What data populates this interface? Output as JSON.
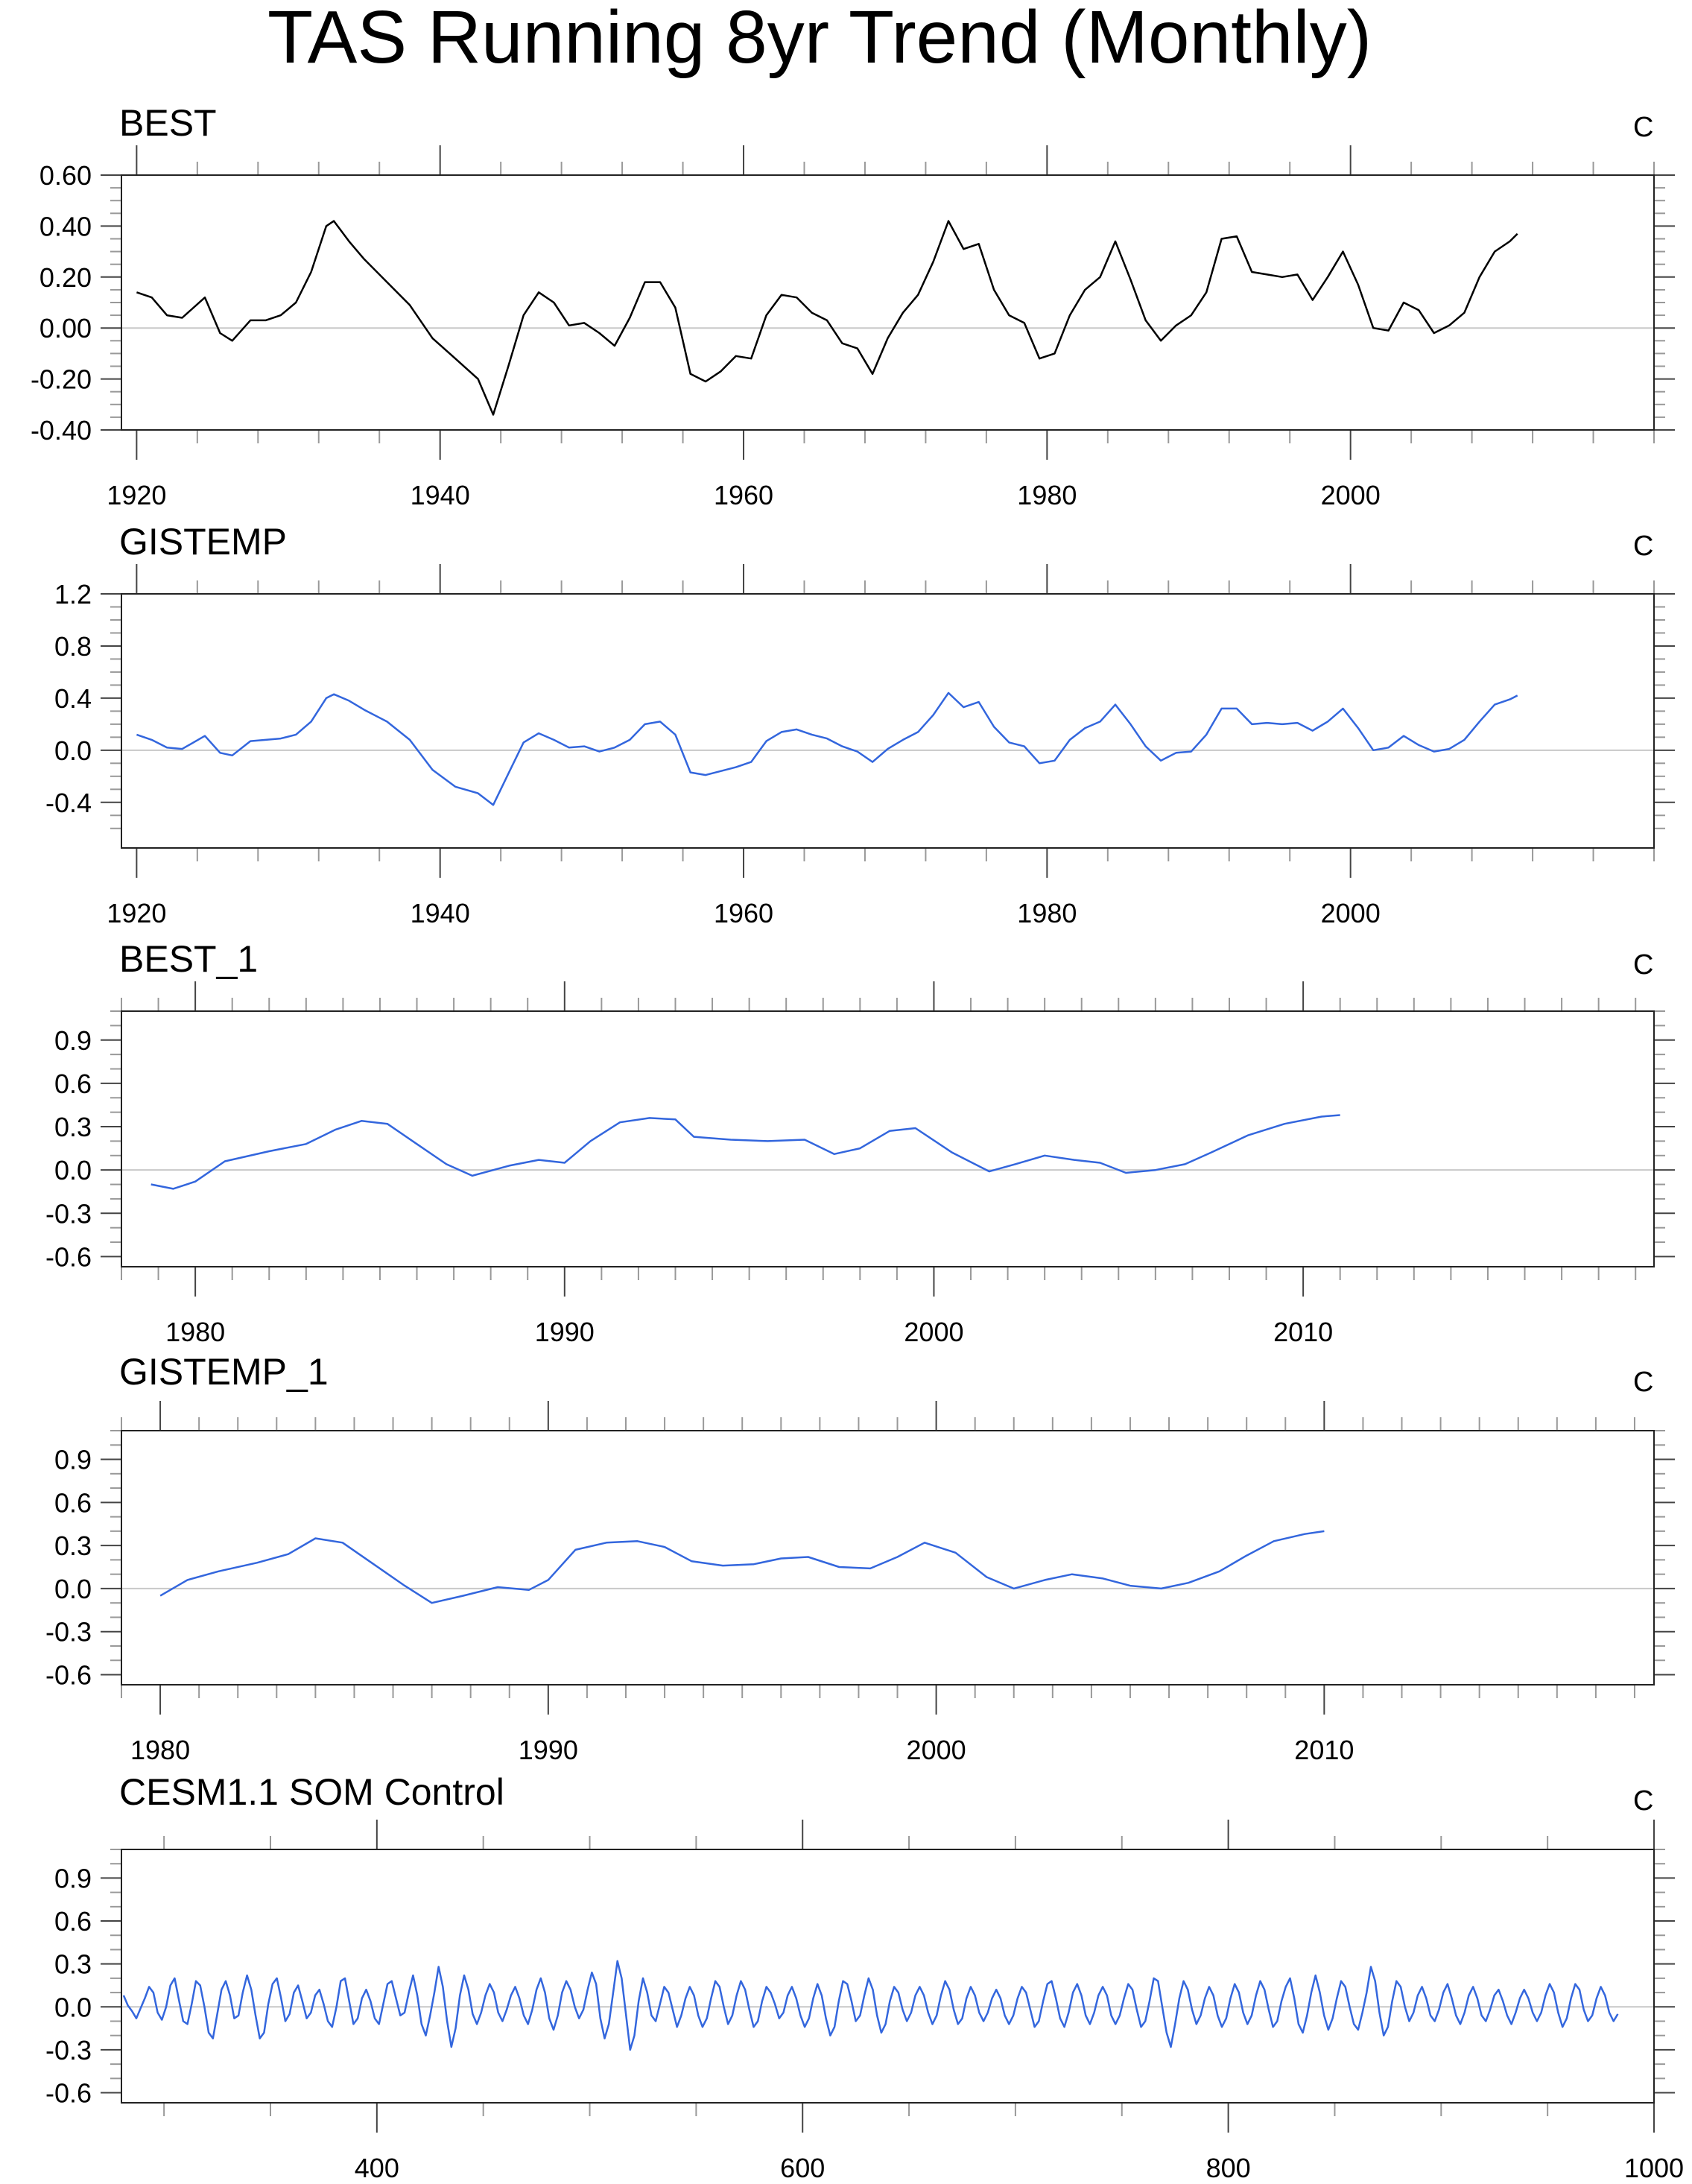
{
  "page": {
    "title": "TAS Running 8yr Trend (Monthly)"
  },
  "chart_data": [
    {
      "type": "line",
      "title": "BEST",
      "units": "C",
      "line_color": "#000000",
      "xlim": [
        1919,
        2020
      ],
      "ylim": [
        -0.4,
        0.6
      ],
      "x_major_ticks": [
        1920,
        1940,
        1960,
        1980,
        2000
      ],
      "x_tick_labels": [
        "1920",
        "1940",
        "1960",
        "1980",
        "2000"
      ],
      "x_minor_step": 4,
      "y_major_ticks": [
        -0.4,
        -0.2,
        0.0,
        0.2,
        0.4,
        0.6
      ],
      "y_tick_labels": [
        "-0.40",
        "-0.20",
        "0.00",
        "0.20",
        "0.40",
        "0.60"
      ],
      "y_minor_step": 0.05,
      "zero_line": true,
      "x": [
        1920.0,
        1921.0,
        1922.0,
        1923.0,
        1924.5,
        1925.5,
        1926.3,
        1927.5,
        1928.5,
        1929.5,
        1930.5,
        1931.5,
        1932.5,
        1933.0,
        1934.0,
        1935.0,
        1936.5,
        1938.0,
        1939.5,
        1941.0,
        1942.5,
        1943.5,
        1944.5,
        1945.5,
        1946.5,
        1947.5,
        1948.5,
        1949.5,
        1950.5,
        1951.5,
        1952.5,
        1953.5,
        1954.5,
        1955.5,
        1956.5,
        1957.5,
        1958.5,
        1959.5,
        1960.5,
        1961.5,
        1962.5,
        1963.5,
        1964.5,
        1965.5,
        1966.5,
        1967.5,
        1968.5,
        1969.5,
        1970.5,
        1971.5,
        1972.5,
        1973.5,
        1974.5,
        1975.5,
        1976.5,
        1977.5,
        1978.5,
        1979.5,
        1980.5,
        1981.5,
        1982.5,
        1983.5,
        1984.5,
        1985.5,
        1986.5,
        1987.5,
        1988.5,
        1989.5,
        1990.5,
        1991.5,
        1992.5,
        1993.5,
        1994.5,
        1995.5,
        1996.5,
        1997.5,
        1998.5,
        1999.5,
        2000.5,
        2001.5,
        2002.5,
        2003.5,
        2004.5,
        2005.5,
        2006.5,
        2007.5,
        2008.5,
        2009.5,
        2010.5,
        2011.0
      ],
      "values": [
        0.14,
        0.12,
        0.05,
        0.04,
        0.12,
        -0.02,
        -0.05,
        0.03,
        0.03,
        0.05,
        0.1,
        0.22,
        0.4,
        0.42,
        0.34,
        0.27,
        0.18,
        0.09,
        -0.04,
        -0.12,
        -0.2,
        -0.34,
        -0.15,
        0.05,
        0.14,
        0.1,
        0.01,
        0.02,
        -0.02,
        -0.07,
        0.04,
        0.18,
        0.18,
        0.08,
        -0.18,
        -0.21,
        -0.17,
        -0.11,
        -0.12,
        0.05,
        0.13,
        0.12,
        0.06,
        0.03,
        -0.06,
        -0.08,
        -0.18,
        -0.04,
        0.06,
        0.13,
        0.26,
        0.42,
        0.31,
        0.33,
        0.15,
        0.05,
        0.02,
        -0.12,
        -0.1,
        0.05,
        0.15,
        0.2,
        0.34,
        0.19,
        0.03,
        -0.05,
        0.01,
        0.05,
        0.14,
        0.35,
        0.36,
        0.22,
        0.21,
        0.2,
        0.21,
        0.11,
        0.2,
        0.3,
        0.17,
        0.0,
        -0.01,
        0.1,
        0.07,
        -0.02,
        0.01,
        0.06,
        0.2,
        0.3,
        0.34,
        0.37
      ]
    },
    {
      "type": "line",
      "title": "GISTEMP",
      "units": "C",
      "line_color": "#3366dd",
      "xlim": [
        1919,
        2020
      ],
      "ylim": [
        -0.75,
        1.2
      ],
      "x_major_ticks": [
        1920,
        1940,
        1960,
        1980,
        2000
      ],
      "x_tick_labels": [
        "1920",
        "1940",
        "1960",
        "1980",
        "2000"
      ],
      "x_minor_step": 4,
      "y_major_ticks": [
        -0.4,
        0.0,
        0.4,
        0.8,
        1.2
      ],
      "y_tick_labels": [
        "-0.4",
        "0.0",
        "0.4",
        "0.8",
        "1.2"
      ],
      "y_minor_step": 0.1,
      "zero_line": true,
      "x": [
        1920.0,
        1921.0,
        1922.0,
        1923.0,
        1924.5,
        1925.5,
        1926.3,
        1927.5,
        1928.5,
        1929.5,
        1930.5,
        1931.5,
        1932.5,
        1933.0,
        1934.0,
        1935.0,
        1936.5,
        1938.0,
        1939.5,
        1941.0,
        1942.5,
        1943.5,
        1944.5,
        1945.5,
        1946.5,
        1947.5,
        1948.5,
        1949.5,
        1950.5,
        1951.5,
        1952.5,
        1953.5,
        1954.5,
        1955.5,
        1956.5,
        1957.5,
        1958.5,
        1959.5,
        1960.5,
        1961.5,
        1962.5,
        1963.5,
        1964.5,
        1965.5,
        1966.5,
        1967.5,
        1968.5,
        1969.5,
        1970.5,
        1971.5,
        1972.5,
        1973.5,
        1974.5,
        1975.5,
        1976.5,
        1977.5,
        1978.5,
        1979.5,
        1980.5,
        1981.5,
        1982.5,
        1983.5,
        1984.5,
        1985.5,
        1986.5,
        1987.5,
        1988.5,
        1989.5,
        1990.5,
        1991.5,
        1992.5,
        1993.5,
        1994.5,
        1995.5,
        1996.5,
        1997.5,
        1998.5,
        1999.5,
        2000.5,
        2001.5,
        2002.5,
        2003.5,
        2004.5,
        2005.5,
        2006.5,
        2007.5,
        2008.5,
        2009.5,
        2010.5,
        2011.0
      ],
      "values": [
        0.12,
        0.08,
        0.02,
        0.01,
        0.11,
        -0.02,
        -0.04,
        0.07,
        0.08,
        0.09,
        0.12,
        0.22,
        0.4,
        0.43,
        0.38,
        0.31,
        0.22,
        0.08,
        -0.15,
        -0.28,
        -0.33,
        -0.42,
        -0.18,
        0.06,
        0.13,
        0.08,
        0.02,
        0.03,
        -0.01,
        0.02,
        0.08,
        0.2,
        0.22,
        0.12,
        -0.17,
        -0.19,
        -0.16,
        -0.13,
        -0.09,
        0.07,
        0.14,
        0.16,
        0.12,
        0.09,
        0.03,
        -0.01,
        -0.09,
        0.01,
        0.08,
        0.14,
        0.27,
        0.44,
        0.33,
        0.37,
        0.18,
        0.06,
        0.03,
        -0.1,
        -0.08,
        0.08,
        0.17,
        0.22,
        0.35,
        0.2,
        0.03,
        -0.08,
        -0.02,
        -0.01,
        0.12,
        0.32,
        0.32,
        0.2,
        0.21,
        0.2,
        0.21,
        0.15,
        0.22,
        0.32,
        0.17,
        0.0,
        0.02,
        0.11,
        0.04,
        -0.01,
        0.01,
        0.08,
        0.22,
        0.35,
        0.39,
        0.42
      ]
    },
    {
      "type": "line",
      "title": "BEST_1",
      "units": "C",
      "line_color": "#3366dd",
      "xlim": [
        1978,
        2019.5
      ],
      "ylim": [
        -0.67,
        1.1
      ],
      "x_major_ticks": [
        1980,
        1990,
        2000,
        2010
      ],
      "x_tick_labels": [
        "1980",
        "1990",
        "2000",
        "2010"
      ],
      "x_minor_step": 1,
      "y_major_ticks": [
        -0.6,
        -0.3,
        0.0,
        0.3,
        0.6,
        0.9
      ],
      "y_tick_labels": [
        "-0.6",
        "-0.3",
        "0.0",
        "0.3",
        "0.6",
        "0.9"
      ],
      "y_minor_step": 0.1,
      "zero_line": true,
      "x": [
        1978.8,
        1979.4,
        1980.0,
        1980.8,
        1982.0,
        1983.0,
        1983.8,
        1984.5,
        1985.2,
        1986.0,
        1986.8,
        1987.5,
        1988.5,
        1989.3,
        1990.0,
        1990.7,
        1991.5,
        1992.3,
        1993.0,
        1993.5,
        1994.5,
        1995.5,
        1996.5,
        1997.3,
        1998.0,
        1998.8,
        1999.5,
        2000.5,
        2001.5,
        2002.2,
        2003.0,
        2003.8,
        2004.5,
        2005.2,
        2006.0,
        2006.8,
        2007.5,
        2008.5,
        2009.5,
        2010.5,
        2011.0
      ],
      "values": [
        -0.1,
        -0.13,
        -0.08,
        0.06,
        0.13,
        0.18,
        0.28,
        0.34,
        0.32,
        0.18,
        0.04,
        -0.04,
        0.03,
        0.07,
        0.05,
        0.2,
        0.33,
        0.36,
        0.35,
        0.23,
        0.21,
        0.2,
        0.21,
        0.11,
        0.15,
        0.27,
        0.29,
        0.12,
        -0.01,
        0.04,
        0.1,
        0.07,
        0.05,
        -0.02,
        0.0,
        0.04,
        0.12,
        0.24,
        0.32,
        0.37,
        0.38
      ]
    },
    {
      "type": "line",
      "title": "GISTEMP_1",
      "units": "C",
      "line_color": "#3366dd",
      "xlim": [
        1979,
        2018.5
      ],
      "ylim": [
        -0.67,
        1.1
      ],
      "x_major_ticks": [
        1980,
        1990,
        2000,
        2010
      ],
      "x_tick_labels": [
        "1980",
        "1990",
        "2000",
        "2010"
      ],
      "x_minor_step": 1,
      "y_major_ticks": [
        -0.6,
        -0.3,
        0.0,
        0.3,
        0.6,
        0.9
      ],
      "y_tick_labels": [
        "-0.6",
        "-0.3",
        "0.0",
        "0.3",
        "0.6",
        "0.9"
      ],
      "y_minor_step": 0.1,
      "zero_line": true,
      "x": [
        1980.0,
        1980.7,
        1981.5,
        1982.5,
        1983.3,
        1984.0,
        1984.7,
        1985.5,
        1986.3,
        1987.0,
        1987.8,
        1988.7,
        1989.5,
        1990.0,
        1990.7,
        1991.5,
        1992.3,
        1993.0,
        1993.7,
        1994.5,
        1995.3,
        1996.0,
        1996.7,
        1997.5,
        1998.3,
        1999.0,
        1999.7,
        2000.5,
        2001.3,
        2002.0,
        2002.8,
        2003.5,
        2004.3,
        2005.0,
        2005.8,
        2006.5,
        2007.3,
        2008.0,
        2008.7,
        2009.5,
        2010.0
      ],
      "values": [
        -0.05,
        0.06,
        0.12,
        0.18,
        0.24,
        0.35,
        0.32,
        0.17,
        0.02,
        -0.1,
        -0.05,
        0.01,
        -0.01,
        0.06,
        0.27,
        0.32,
        0.33,
        0.29,
        0.19,
        0.16,
        0.17,
        0.21,
        0.22,
        0.15,
        0.14,
        0.22,
        0.32,
        0.25,
        0.08,
        0.0,
        0.06,
        0.1,
        0.07,
        0.02,
        0.0,
        0.04,
        0.12,
        0.23,
        0.33,
        0.38,
        0.4
      ]
    },
    {
      "type": "line",
      "title": "CESM1.1 SOM Control",
      "units": "C",
      "line_color": "#3366dd",
      "xlim": [
        280,
        1000
      ],
      "ylim": [
        -0.67,
        1.1
      ],
      "x_major_ticks": [
        400,
        600,
        800,
        1000
      ],
      "x_tick_labels": [
        "400",
        "600",
        "800",
        "1000"
      ],
      "x_minor_step": 50,
      "y_major_ticks": [
        -0.6,
        -0.3,
        0.0,
        0.3,
        0.6,
        0.9
      ],
      "y_tick_labels": [
        "-0.6",
        "-0.3",
        "0.0",
        "0.3",
        "0.6",
        "0.9"
      ],
      "y_minor_step": 0.1,
      "zero_line": true,
      "x_start": 281,
      "x_step": 2,
      "values": [
        0.08,
        0.01,
        -0.03,
        -0.08,
        -0.01,
        0.06,
        0.14,
        0.1,
        -0.04,
        -0.09,
        0.0,
        0.15,
        0.2,
        0.05,
        -0.1,
        -0.12,
        0.02,
        0.18,
        0.15,
        0.0,
        -0.18,
        -0.22,
        -0.05,
        0.12,
        0.18,
        0.08,
        -0.08,
        -0.06,
        0.1,
        0.22,
        0.12,
        -0.06,
        -0.22,
        -0.18,
        0.02,
        0.16,
        0.2,
        0.06,
        -0.1,
        -0.05,
        0.1,
        0.15,
        0.04,
        -0.08,
        -0.04,
        0.08,
        0.12,
        0.02,
        -0.1,
        -0.14,
        0.0,
        0.18,
        0.2,
        0.04,
        -0.12,
        -0.08,
        0.06,
        0.12,
        0.04,
        -0.08,
        -0.12,
        0.02,
        0.16,
        0.18,
        0.06,
        -0.06,
        -0.04,
        0.1,
        0.22,
        0.08,
        -0.12,
        -0.2,
        -0.06,
        0.1,
        0.28,
        0.14,
        -0.1,
        -0.28,
        -0.15,
        0.08,
        0.22,
        0.12,
        -0.05,
        -0.12,
        -0.04,
        0.08,
        0.16,
        0.1,
        -0.04,
        -0.1,
        -0.02,
        0.08,
        0.14,
        0.06,
        -0.06,
        -0.12,
        -0.02,
        0.12,
        0.2,
        0.1,
        -0.08,
        -0.16,
        -0.06,
        0.1,
        0.18,
        0.12,
        0.0,
        -0.08,
        -0.02,
        0.12,
        0.24,
        0.16,
        -0.08,
        -0.22,
        -0.12,
        0.1,
        0.32,
        0.2,
        -0.05,
        -0.3,
        -0.2,
        0.04,
        0.2,
        0.1,
        -0.06,
        -0.1,
        0.02,
        0.14,
        0.1,
        -0.02,
        -0.14,
        -0.06,
        0.06,
        0.14,
        0.08,
        -0.06,
        -0.14,
        -0.08,
        0.06,
        0.18,
        0.14,
        0.0,
        -0.12,
        -0.06,
        0.08,
        0.18,
        0.12,
        -0.02,
        -0.14,
        -0.1,
        0.04,
        0.14,
        0.1,
        0.02,
        -0.08,
        -0.04,
        0.08,
        0.14,
        0.06,
        -0.06,
        -0.14,
        -0.08,
        0.06,
        0.16,
        0.08,
        -0.08,
        -0.2,
        -0.14,
        0.04,
        0.18,
        0.16,
        0.04,
        -0.1,
        -0.06,
        0.08,
        0.2,
        0.12,
        -0.06,
        -0.18,
        -0.12,
        0.04,
        0.14,
        0.1,
        -0.02,
        -0.1,
        -0.04,
        0.08,
        0.14,
        0.08,
        -0.04,
        -0.12,
        -0.06,
        0.08,
        0.18,
        0.12,
        -0.02,
        -0.12,
        -0.08,
        0.06,
        0.14,
        0.08,
        -0.04,
        -0.1,
        -0.04,
        0.06,
        0.12,
        0.06,
        -0.06,
        -0.12,
        -0.06,
        0.06,
        0.14,
        0.1,
        -0.02,
        -0.14,
        -0.1,
        0.04,
        0.16,
        0.18,
        0.06,
        -0.08,
        -0.14,
        -0.04,
        0.1,
        0.16,
        0.08,
        -0.06,
        -0.12,
        -0.04,
        0.08,
        0.14,
        0.08,
        -0.06,
        -0.12,
        -0.06,
        0.06,
        0.16,
        0.12,
        -0.02,
        -0.14,
        -0.1,
        0.04,
        0.2,
        0.18,
        0.0,
        -0.18,
        -0.28,
        -0.12,
        0.06,
        0.18,
        0.12,
        -0.02,
        -0.12,
        -0.06,
        0.06,
        0.14,
        0.08,
        -0.06,
        -0.14,
        -0.08,
        0.06,
        0.16,
        0.1,
        -0.04,
        -0.12,
        -0.06,
        0.08,
        0.18,
        0.12,
        -0.02,
        -0.14,
        -0.1,
        0.04,
        0.14,
        0.2,
        0.06,
        -0.12,
        -0.18,
        -0.06,
        0.1,
        0.22,
        0.1,
        -0.06,
        -0.16,
        -0.08,
        0.06,
        0.18,
        0.14,
        0.0,
        -0.12,
        -0.16,
        -0.04,
        0.1,
        0.28,
        0.18,
        -0.04,
        -0.2,
        -0.14,
        0.04,
        0.18,
        0.14,
        0.0,
        -0.1,
        -0.04,
        0.08,
        0.14,
        0.06,
        -0.06,
        -0.1,
        -0.02,
        0.1,
        0.16,
        0.06,
        -0.06,
        -0.12,
        -0.04,
        0.08,
        0.14,
        0.06,
        -0.06,
        -0.1,
        -0.02,
        0.08,
        0.12,
        0.04,
        -0.06,
        -0.12,
        -0.04,
        0.06,
        0.12,
        0.06,
        -0.04,
        -0.1,
        -0.04,
        0.08,
        0.16,
        0.1,
        -0.04,
        -0.14,
        -0.08,
        0.06,
        0.16,
        0.12,
        -0.02,
        -0.1,
        -0.06,
        0.06,
        0.14,
        0.08,
        -0.04,
        -0.1,
        -0.05
      ]
    }
  ]
}
